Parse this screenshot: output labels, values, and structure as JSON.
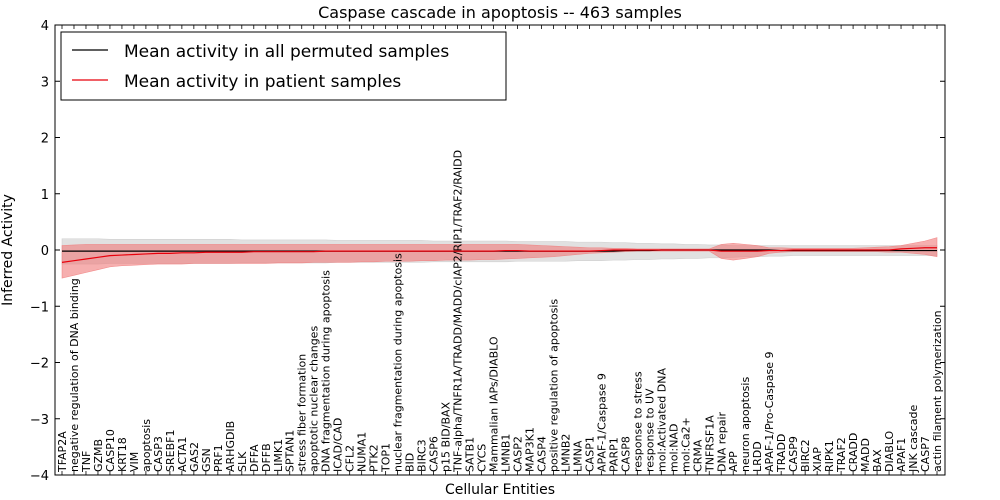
{
  "chart_data": {
    "type": "line",
    "title": "Caspase cascade in apoptosis -- 463 samples",
    "xlabel": "Cellular Entities",
    "ylabel": "Inferred Activity",
    "ylim": [
      -4,
      4
    ],
    "yticks": [
      -4,
      -3,
      -2,
      -1,
      0,
      1,
      2,
      3,
      4
    ],
    "ytick_labels": [
      "−4",
      "−3",
      "−2",
      "−1",
      "0",
      "1",
      "2",
      "3",
      "4"
    ],
    "legend_position": "top-left",
    "colors": {
      "permuted": "#000000",
      "patient": "#e8000b",
      "patient_band": "#f07a7a",
      "permuted_band": "#c8c8c8"
    },
    "categories": [
      "TFAP2A",
      "negative regulation of DNA binding",
      "TNF",
      "GZMB",
      "CASP10",
      "KRT18",
      "VIM",
      "apoptosis",
      "CASP3",
      "SREBF1",
      "ACTA1",
      "GAS2",
      "GSN",
      "PRF1",
      "ARHGDIB",
      "SLK",
      "DFFA",
      "DFFB",
      "LIMK1",
      "SPTAN1",
      "stress fiber formation",
      "apoptotic nuclear changes",
      "DNA fragmentation during apoptosis",
      "ICAD/CAD",
      "CFL2",
      "NUMA1",
      "PTK2",
      "TOP1",
      "nuclear fragmentation during apoptosis",
      "BID",
      "BIRC3",
      "CASP6",
      "p15 BID/BAX",
      "TNF-alpha/TNFR1A/TRADD/MADD/cIAP2/RIP1/TRAF2/RAIDD",
      "SATB1",
      "CYCS",
      "Mammalian IAPs/DIABLO",
      "LMNB1",
      "CASP2",
      "MAP3K1",
      "CASP4",
      "positive regulation of apoptosis",
      "LMNB2",
      "LMNA",
      "CASP1",
      "APAF-1/Caspase 9",
      "PARP1",
      "CASP8",
      "response to stress",
      "response to UV",
      "mol:Activated DNA",
      "mol:NAD",
      "mol:Ca2+",
      "CRMA",
      "TNFRSF1A",
      "DNA repair",
      "APP",
      "neuron apoptosis",
      "LRDD",
      "APAF-1/Pro-Caspase 9",
      "TRADD",
      "CASP9",
      "BIRC2",
      "XIAP",
      "RIPK1",
      "TRAF2",
      "CRADD",
      "MADD",
      "BAX",
      "DIABLO",
      "APAF1",
      "JNK cascade",
      "CASP7",
      "actin filament polymerization"
    ],
    "series": [
      {
        "name": "Mean activity in all permuted samples",
        "values": [
          -0.02,
          -0.02,
          -0.02,
          -0.02,
          -0.02,
          -0.02,
          -0.02,
          -0.02,
          -0.02,
          -0.02,
          -0.02,
          -0.02,
          -0.02,
          -0.02,
          -0.02,
          -0.02,
          -0.02,
          -0.02,
          -0.02,
          -0.02,
          -0.02,
          -0.02,
          -0.02,
          -0.02,
          -0.02,
          -0.02,
          -0.02,
          -0.02,
          -0.02,
          -0.02,
          -0.02,
          -0.02,
          -0.02,
          -0.02,
          -0.02,
          -0.02,
          -0.02,
          -0.02,
          -0.02,
          -0.02,
          -0.02,
          -0.02,
          -0.02,
          -0.02,
          -0.02,
          -0.02,
          -0.02,
          -0.01,
          -0.01,
          -0.01,
          0,
          0,
          0,
          0,
          0,
          0,
          0,
          0,
          0,
          0,
          -0.01,
          -0.01,
          -0.01,
          -0.01,
          -0.01,
          -0.01,
          -0.01,
          -0.01,
          -0.01,
          -0.01,
          -0.01,
          -0.01,
          -0.01,
          -0.01
        ],
        "lower": [
          -0.25,
          -0.25,
          -0.25,
          -0.25,
          -0.24,
          -0.24,
          -0.24,
          -0.24,
          -0.24,
          -0.24,
          -0.24,
          -0.24,
          -0.24,
          -0.24,
          -0.24,
          -0.23,
          -0.23,
          -0.23,
          -0.23,
          -0.23,
          -0.23,
          -0.23,
          -0.23,
          -0.22,
          -0.22,
          -0.22,
          -0.22,
          -0.22,
          -0.22,
          -0.22,
          -0.22,
          -0.21,
          -0.21,
          -0.21,
          -0.21,
          -0.21,
          -0.21,
          -0.21,
          -0.2,
          -0.2,
          -0.2,
          -0.2,
          -0.2,
          -0.19,
          -0.19,
          -0.19,
          -0.18,
          -0.18,
          -0.17,
          -0.17,
          -0.16,
          -0.16,
          -0.15,
          -0.15,
          -0.14,
          -0.14,
          -0.13,
          -0.12,
          -0.12,
          -0.11,
          -0.11,
          -0.1,
          -0.1,
          -0.1,
          -0.1,
          -0.1,
          -0.1,
          -0.1,
          -0.1,
          -0.1,
          -0.1,
          -0.1,
          -0.1,
          -0.1
        ],
        "upper": [
          0.2,
          0.2,
          0.2,
          0.2,
          0.19,
          0.19,
          0.19,
          0.19,
          0.19,
          0.19,
          0.19,
          0.19,
          0.19,
          0.19,
          0.19,
          0.18,
          0.18,
          0.18,
          0.18,
          0.18,
          0.18,
          0.18,
          0.18,
          0.17,
          0.17,
          0.17,
          0.17,
          0.17,
          0.17,
          0.17,
          0.17,
          0.16,
          0.16,
          0.16,
          0.16,
          0.16,
          0.16,
          0.16,
          0.15,
          0.15,
          0.15,
          0.15,
          0.15,
          0.14,
          0.14,
          0.14,
          0.13,
          0.13,
          0.12,
          0.12,
          0.11,
          0.11,
          0.1,
          0.1,
          0.09,
          0.09,
          0.08,
          0.08,
          0.08,
          0.08,
          0.08,
          0.08,
          0.08,
          0.08,
          0.08,
          0.08,
          0.08,
          0.08,
          0.08,
          0.08,
          0.08,
          0.08,
          0.08,
          0.08
        ]
      },
      {
        "name": "Mean activity in patient samples",
        "values": [
          -0.22,
          -0.19,
          -0.16,
          -0.13,
          -0.1,
          -0.09,
          -0.08,
          -0.07,
          -0.06,
          -0.06,
          -0.05,
          -0.05,
          -0.04,
          -0.04,
          -0.04,
          -0.04,
          -0.03,
          -0.03,
          -0.03,
          -0.03,
          -0.03,
          -0.03,
          -0.02,
          -0.02,
          -0.02,
          -0.02,
          -0.02,
          -0.02,
          -0.02,
          -0.02,
          -0.02,
          -0.02,
          -0.02,
          -0.02,
          -0.02,
          -0.02,
          -0.02,
          -0.01,
          -0.01,
          -0.02,
          -0.02,
          -0.02,
          -0.02,
          -0.02,
          -0.02,
          -0.01,
          0,
          0,
          0,
          0,
          0,
          0,
          0,
          0,
          0,
          -0.02,
          -0.02,
          -0.02,
          -0.02,
          -0.01,
          -0.01,
          0,
          0,
          0,
          0,
          0,
          0,
          0,
          0,
          0,
          0.02,
          0.03,
          0.04,
          0.04
        ],
        "lower": [
          -0.5,
          -0.45,
          -0.4,
          -0.35,
          -0.3,
          -0.28,
          -0.27,
          -0.26,
          -0.25,
          -0.25,
          -0.25,
          -0.24,
          -0.24,
          -0.24,
          -0.24,
          -0.24,
          -0.24,
          -0.24,
          -0.23,
          -0.23,
          -0.23,
          -0.22,
          -0.22,
          -0.22,
          -0.22,
          -0.21,
          -0.21,
          -0.2,
          -0.2,
          -0.2,
          -0.19,
          -0.19,
          -0.18,
          -0.18,
          -0.18,
          -0.17,
          -0.17,
          -0.16,
          -0.15,
          -0.14,
          -0.13,
          -0.12,
          -0.1,
          -0.08,
          -0.06,
          -0.05,
          -0.04,
          -0.03,
          -0.02,
          -0.02,
          -0.02,
          -0.02,
          -0.02,
          -0.02,
          -0.02,
          -0.15,
          -0.18,
          -0.15,
          -0.12,
          -0.06,
          -0.04,
          -0.03,
          -0.03,
          -0.03,
          -0.03,
          -0.03,
          -0.03,
          -0.03,
          -0.03,
          -0.04,
          -0.04,
          -0.06,
          -0.08,
          -0.12
        ],
        "upper": [
          0.08,
          0.09,
          0.1,
          0.1,
          0.1,
          0.1,
          0.1,
          0.1,
          0.1,
          0.1,
          0.1,
          0.1,
          0.1,
          0.1,
          0.1,
          0.1,
          0.1,
          0.1,
          0.1,
          0.1,
          0.1,
          0.1,
          0.1,
          0.1,
          0.1,
          0.1,
          0.1,
          0.1,
          0.1,
          0.1,
          0.1,
          0.1,
          0.1,
          0.1,
          0.1,
          0.1,
          0.1,
          0.1,
          0.1,
          0.09,
          0.08,
          0.07,
          0.06,
          0.05,
          0.04,
          0.04,
          0.03,
          0.03,
          0.02,
          0.02,
          0.02,
          0.02,
          0.02,
          0.02,
          0.02,
          0.1,
          0.12,
          0.1,
          0.08,
          0.04,
          0.04,
          0.03,
          0.03,
          0.03,
          0.03,
          0.03,
          0.03,
          0.04,
          0.05,
          0.06,
          0.08,
          0.12,
          0.16,
          0.22
        ]
      }
    ]
  }
}
